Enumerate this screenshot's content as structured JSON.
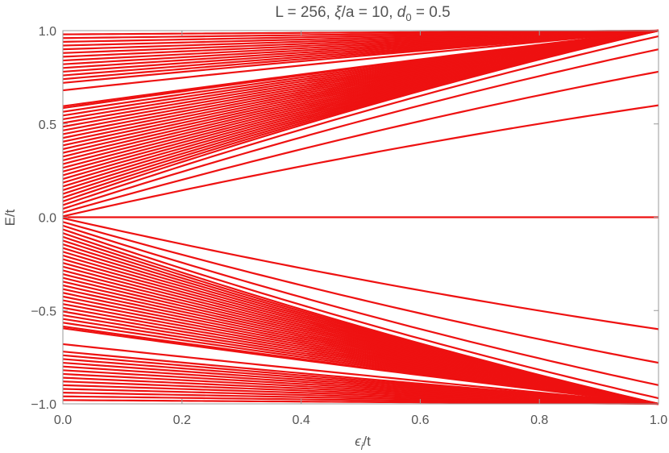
{
  "chart_data": {
    "type": "line",
    "title": {
      "prefix": "L = 256, ",
      "xi": "ξ",
      "mid": "/a = 10, ",
      "d": "d",
      "d_sub": "0",
      "suffix": " = 0.5"
    },
    "xlabel": {
      "main": "ϵ",
      "sub": "i",
      "rest": "/t"
    },
    "ylabel": "E/t",
    "xlim": [
      0.0,
      1.0
    ],
    "ylim": [
      -1.0,
      1.0
    ],
    "x_ticks": [
      "0.0",
      "0.2",
      "0.4",
      "0.6",
      "0.8",
      "1.0"
    ],
    "y_ticks": [
      "−1.0",
      "−0.5",
      "0.0",
      "0.5",
      "1.0"
    ],
    "line_color": "#ee1111",
    "grid": false,
    "series_groups": [
      {
        "band": "zero-mode",
        "E_at_0": [
          0.0
        ],
        "E_at_1": [
          0.0
        ]
      },
      {
        "band": "near-zero-fan",
        "E_at_0": [
          0.005,
          0.025,
          0.045,
          0.065,
          0.085,
          0.105,
          0.125,
          0.145,
          0.165,
          0.185,
          0.205,
          0.225,
          0.245,
          0.265,
          0.285,
          0.305,
          0.325,
          0.345,
          0.365,
          0.385,
          0.405,
          0.425,
          0.445,
          0.465,
          0.485,
          0.505,
          0.525,
          0.545,
          0.565,
          0.585,
          0.595
        ],
        "E_at_1": [
          0.6,
          0.78,
          0.9,
          0.97,
          1.0,
          1.0,
          1.0,
          1.0,
          1.0,
          1.0,
          1.0,
          1.0,
          1.0,
          1.0,
          1.0,
          1.0,
          1.0,
          1.0,
          1.0,
          1.0,
          1.0,
          1.0,
          1.0,
          1.0,
          1.0,
          1.0,
          1.0,
          1.0,
          1.0,
          1.0,
          1.0
        ]
      },
      {
        "band": "upper-band",
        "E_at_0": [
          0.68,
          0.72,
          0.74,
          0.76,
          0.78,
          0.8,
          0.82,
          0.84,
          0.86,
          0.88,
          0.9,
          0.92,
          0.94,
          0.96,
          0.98,
          1.0
        ],
        "E_at_1": [
          1.0,
          1.0,
          1.0,
          1.0,
          1.0,
          1.0,
          1.0,
          1.0,
          1.0,
          1.0,
          1.0,
          1.0,
          1.0,
          1.0,
          1.0,
          1.0
        ]
      }
    ]
  }
}
